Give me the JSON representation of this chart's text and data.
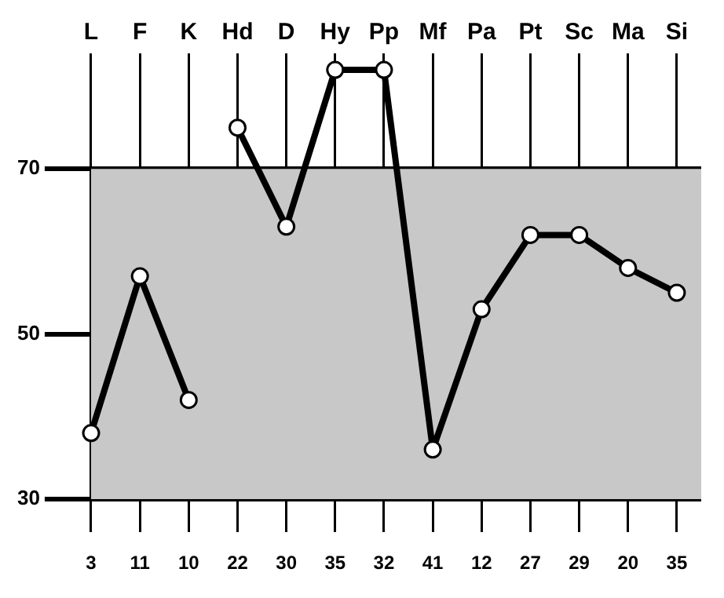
{
  "chart_data": {
    "type": "line",
    "categories": [
      "L",
      "F",
      "K",
      "Hd",
      "D",
      "Hy",
      "Pp",
      "Mf",
      "Pa",
      "Pt",
      "Sc",
      "Ma",
      "Si"
    ],
    "series": [
      {
        "color": "#000000",
        "values": [
          38,
          57,
          42,
          null,
          null,
          null,
          null,
          null,
          null,
          null,
          null,
          null,
          null
        ]
      },
      {
        "color": "#000000",
        "values": [
          null,
          null,
          null,
          75,
          63,
          82,
          82,
          36,
          53,
          62,
          62,
          58,
          55
        ]
      }
    ],
    "ylim": [
      26,
      84
    ],
    "yticks": [
      30,
      50,
      70
    ],
    "grid": true,
    "marker": "circle",
    "line_style": "solid",
    "legend": false,
    "bands": [
      {
        "axis": "y",
        "from": 30,
        "to": 70,
        "color": "#c8c8c8"
      }
    ],
    "annotations": [
      "3",
      "11",
      "10",
      "22",
      "30",
      "35",
      "32",
      "41",
      "12",
      "27",
      "29",
      "20",
      "35"
    ]
  }
}
